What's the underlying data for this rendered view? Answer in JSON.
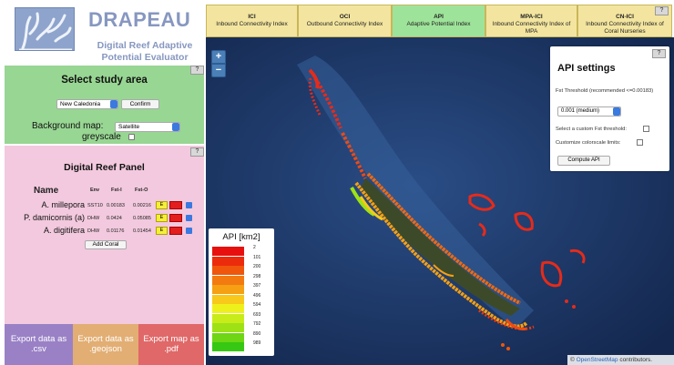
{
  "app": {
    "title": "DRAPEAU",
    "subtitle_line1": "Digital Reef Adaptive",
    "subtitle_line2": "Potential Evaluator"
  },
  "study_area": {
    "title": "Select study area",
    "region_value": "New Caledonia",
    "confirm_label": "Confirm",
    "background_label": "Background map:",
    "background_value": "Satellite",
    "greyscale_label": "greyscale",
    "help_label": "?"
  },
  "reef_panel": {
    "title": "Digital Reef Panel",
    "help_label": "?",
    "headers": {
      "name": "Name",
      "env": "Env",
      "fst_i": "Fst-I",
      "fst_o": "Fst-O"
    },
    "rows": [
      {
        "name": "A. millepora",
        "env": "SST10",
        "fst_i": "0.00183",
        "fst_o": "0.00216",
        "e": "E"
      },
      {
        "name": "P. damicornis (a)",
        "env": "DHW",
        "fst_i": "0.0424",
        "fst_o": "0.05085",
        "e": "E"
      },
      {
        "name": "A. digitifera",
        "env": "DHW",
        "fst_i": "0.01176",
        "fst_o": "0.01454",
        "e": "E"
      }
    ],
    "add_coral_label": "Add Coral"
  },
  "exports": {
    "csv_line1": "Export data as",
    "csv_line2": ".csv",
    "geojson_line1": "Export data as",
    "geojson_line2": ".geojson",
    "pdf_line1": "Export map as",
    "pdf_line2": ".pdf"
  },
  "tabs": [
    {
      "abbr": "ICI",
      "label": "Inbound Connectivity Index"
    },
    {
      "abbr": "OCI",
      "label": "Outbound Connectivity Index"
    },
    {
      "abbr": "API",
      "label": "Adaptive Potential Index"
    },
    {
      "abbr": "MPA-ICI",
      "label": "Inbound Connectivity Index of MPA"
    },
    {
      "abbr": "CN-ICI",
      "label": "Inbound Connectivity Index of Coral Nurseries"
    }
  ],
  "tabs_help_label": "?",
  "map": {
    "zoom_in": "+",
    "zoom_out": "−",
    "attribution_prefix": "©",
    "attribution_link": "OpenStreetMap",
    "attribution_suffix": "contributors."
  },
  "api_settings": {
    "title": "API settings",
    "help_label": "?",
    "fst_threshold_label": "Fst Threshold (recommended <=0.00183)",
    "fst_value": "0.001 (medium)",
    "custom_fst_label": "Select a custom Fst threshold:",
    "colorscale_label": "Customize colorscale limits:",
    "compute_label": "Compute API"
  },
  "legend": {
    "title": "API [km2]",
    "entries": [
      {
        "value": "2",
        "color": "#e8100e"
      },
      {
        "value": "101",
        "color": "#ec2b0c"
      },
      {
        "value": "200",
        "color": "#f0560c"
      },
      {
        "value": "298",
        "color": "#f37a10"
      },
      {
        "value": "397",
        "color": "#f6a014"
      },
      {
        "value": "496",
        "color": "#f8c81a"
      },
      {
        "value": "594",
        "color": "#eef01c"
      },
      {
        "value": "693",
        "color": "#c8ec1a"
      },
      {
        "value": "792",
        "color": "#9ee216"
      },
      {
        "value": "890",
        "color": "#6ed614"
      },
      {
        "value": "989",
        "color": "#36c812"
      }
    ]
  },
  "colors": {
    "study_panel": "#98d693",
    "reef_panel": "#f2c9de",
    "tab_active": "#9ee39a",
    "tab_inactive": "#f3e59f",
    "map_ocean": "#1f3d70"
  }
}
